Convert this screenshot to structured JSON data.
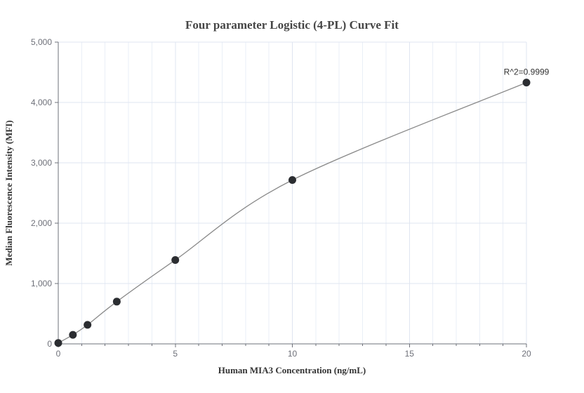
{
  "page": {
    "background": "#ffffff"
  },
  "chart_data": {
    "type": "scatter",
    "curve_fit": "4PL",
    "title": "Four parameter Logistic (4-PL) Curve Fit",
    "xlabel": "Human MIA3 Concentration (ng/mL)",
    "ylabel": "Median Fluorescence Intensity (MFI)",
    "annotation": "R^2=0.9999",
    "x": [
      0,
      0.625,
      1.25,
      2.5,
      5,
      10,
      20
    ],
    "y": [
      15,
      150,
      315,
      700,
      1390,
      2715,
      4330
    ],
    "xlim": [
      0,
      20
    ],
    "ylim": [
      0,
      5000
    ],
    "x_ticks": [
      0,
      5,
      10,
      15,
      20
    ],
    "x_tick_labels": [
      "0",
      "5",
      "10",
      "15",
      "20"
    ],
    "x_minor_tick_step": 1,
    "y_ticks": [
      0,
      1000,
      2000,
      3000,
      4000,
      5000
    ],
    "y_tick_labels": [
      "0",
      "1,000",
      "2,000",
      "3,000",
      "4,000",
      "5,000"
    ],
    "grid": "horizontal major lines + vertical minor lines",
    "legend": "none"
  },
  "colors": {
    "point": "#2b2d31",
    "curve": "#8a8a8a",
    "grid_major": "#dfe5f0",
    "grid_minor": "#eaeff7",
    "axis": "#6E7079",
    "tick_label": "#6E7079",
    "title": "#464646",
    "axis_name": "#333333",
    "annotation": "#333333"
  }
}
